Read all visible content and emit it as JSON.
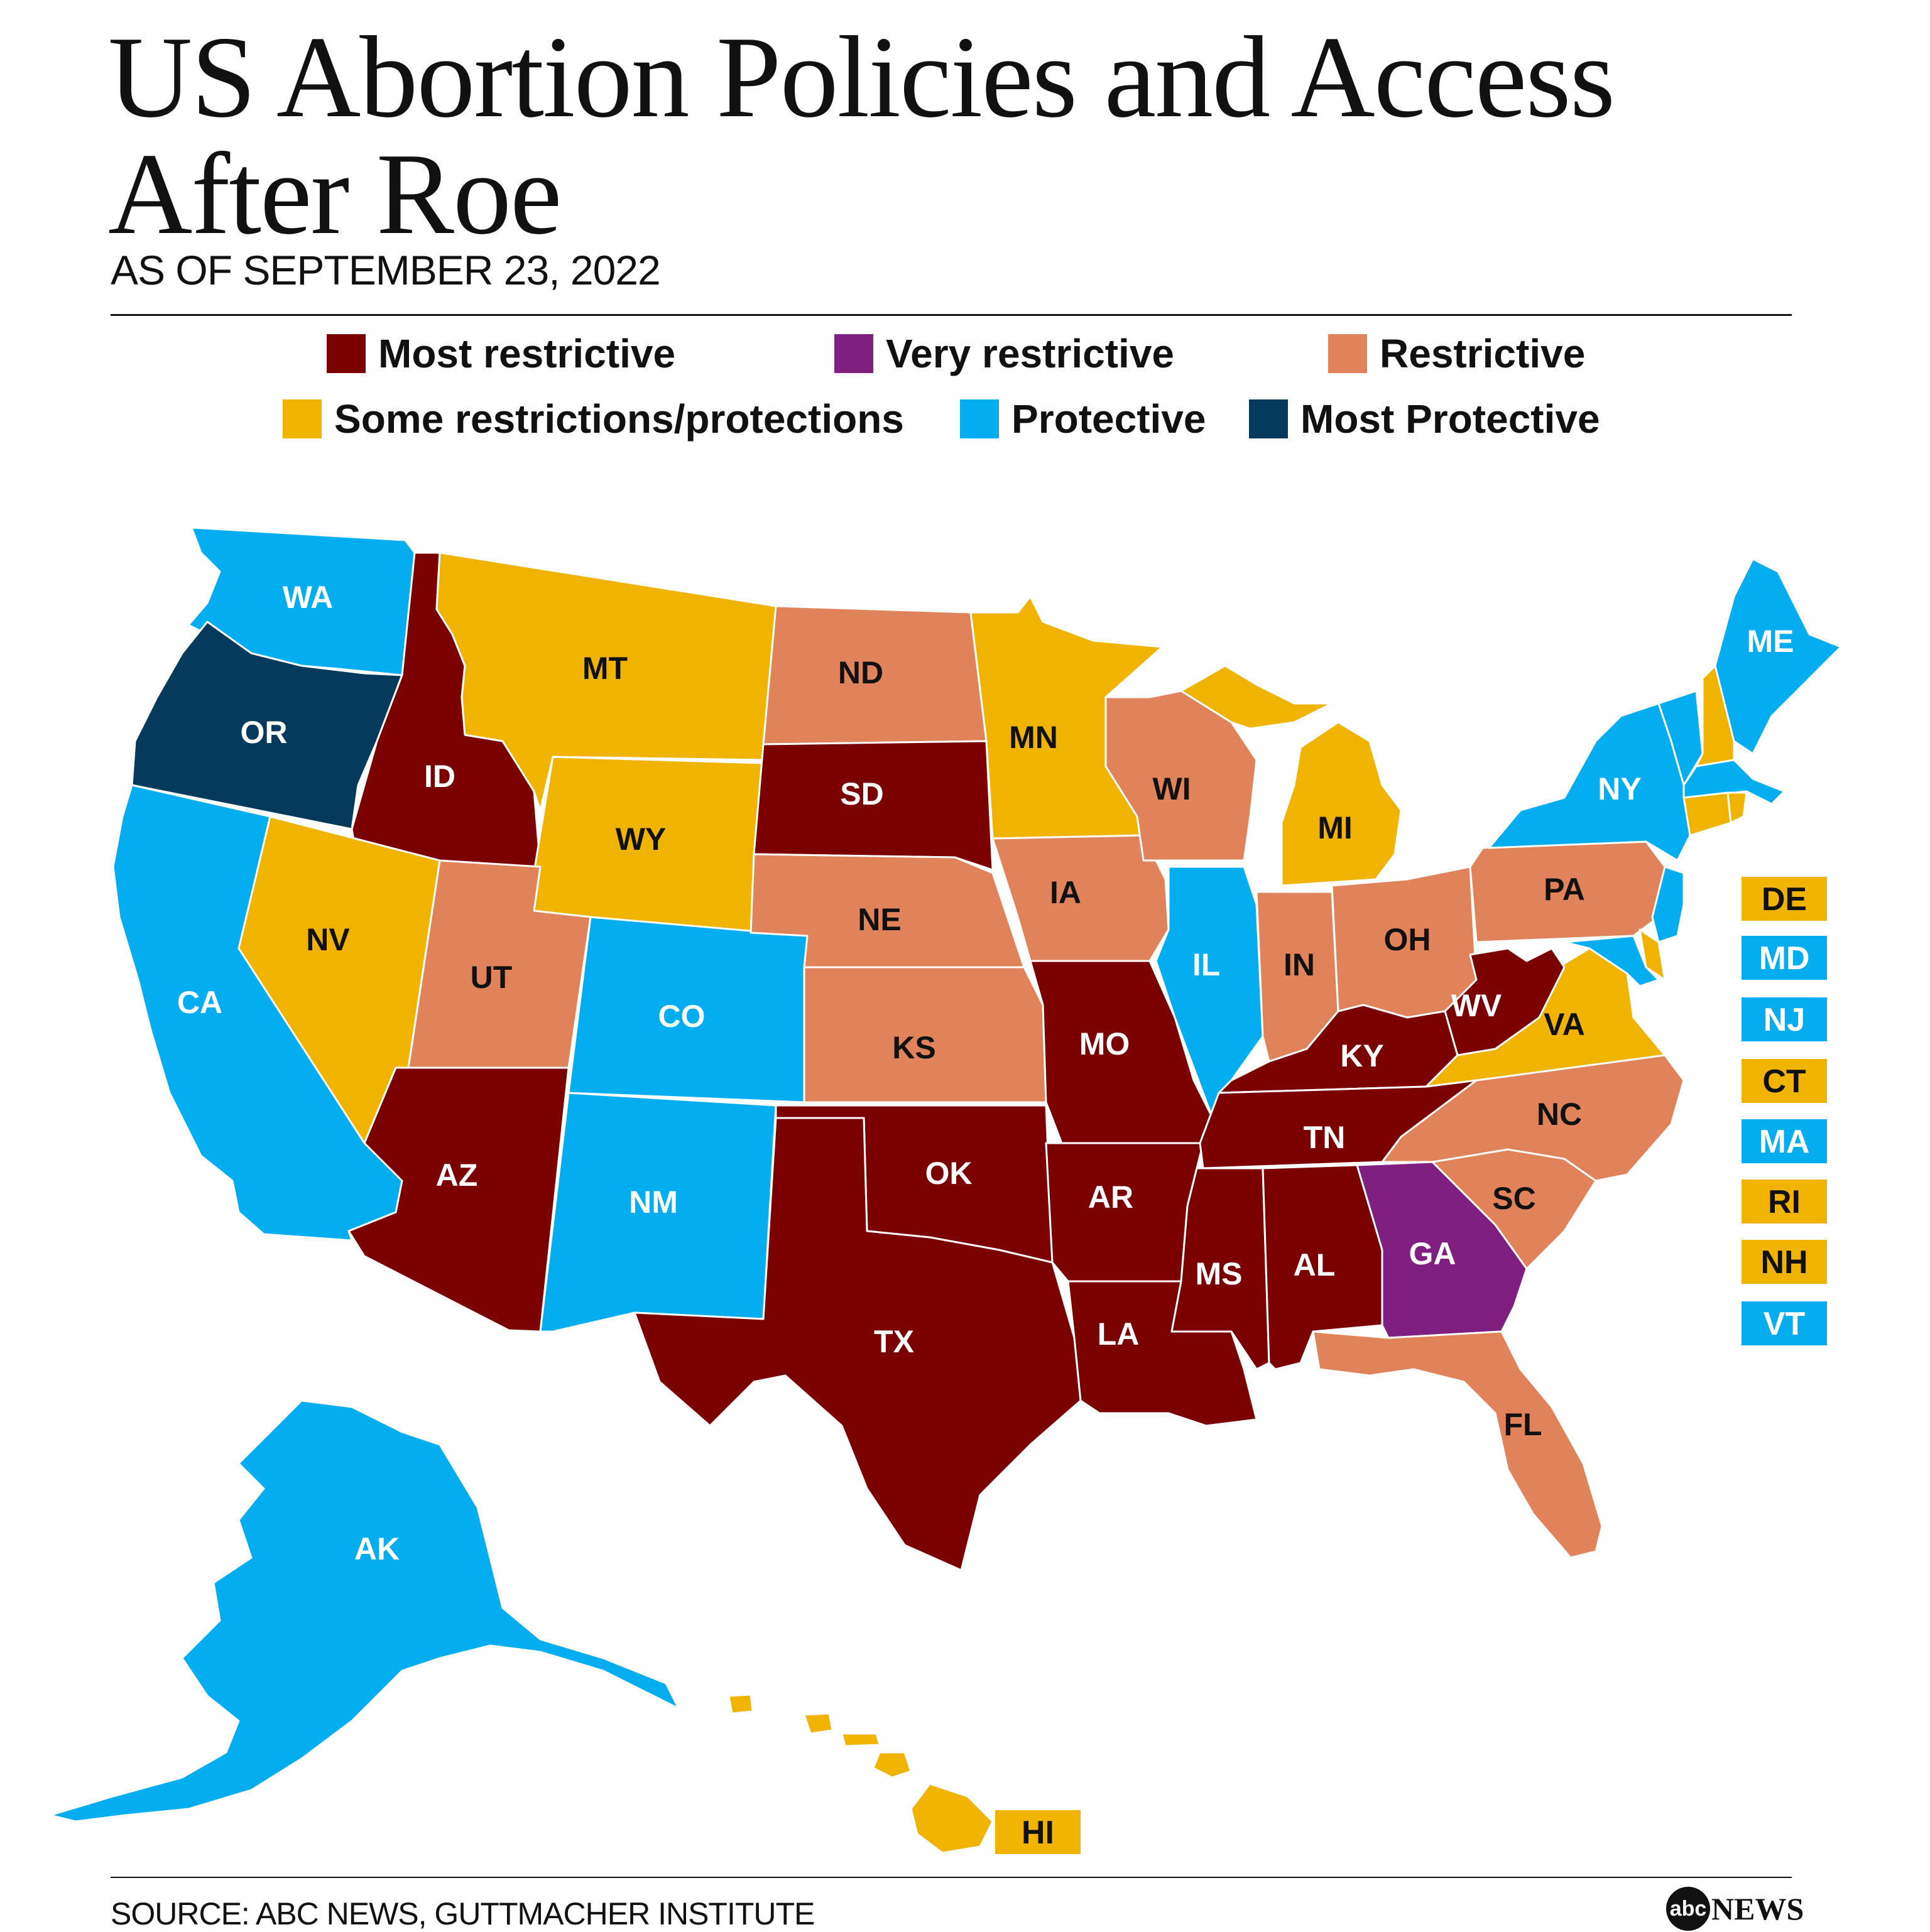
{
  "header": {
    "title": "US Abortion Policies and Access After Roe",
    "subtitle": "AS OF SEPTEMBER 23, 2022"
  },
  "categories": {
    "most_restrictive": {
      "label": "Most restrictive",
      "color": "#7b0000"
    },
    "very_restrictive": {
      "label": "Very restrictive",
      "color": "#7f1f80"
    },
    "restrictive": {
      "label": "Restrictive",
      "color": "#e0835b"
    },
    "some": {
      "label": "Some restrictions/protections",
      "color": "#f0b400"
    },
    "protective": {
      "label": "Protective",
      "color": "#04adef"
    },
    "most_protective": {
      "label": "Most Protective",
      "color": "#053a5c"
    }
  },
  "legend_rows": [
    [
      "most_restrictive",
      "very_restrictive",
      "restrictive"
    ],
    [
      "some",
      "protective",
      "most_protective"
    ]
  ],
  "states": [
    {
      "abbr": "WA",
      "category": "protective"
    },
    {
      "abbr": "OR",
      "category": "most_protective"
    },
    {
      "abbr": "CA",
      "category": "protective"
    },
    {
      "abbr": "ID",
      "category": "most_restrictive"
    },
    {
      "abbr": "NV",
      "category": "some"
    },
    {
      "abbr": "MT",
      "category": "some"
    },
    {
      "abbr": "WY",
      "category": "some"
    },
    {
      "abbr": "UT",
      "category": "restrictive"
    },
    {
      "abbr": "AZ",
      "category": "most_restrictive"
    },
    {
      "abbr": "CO",
      "category": "protective"
    },
    {
      "abbr": "NM",
      "category": "protective"
    },
    {
      "abbr": "ND",
      "category": "restrictive"
    },
    {
      "abbr": "SD",
      "category": "most_restrictive"
    },
    {
      "abbr": "NE",
      "category": "restrictive"
    },
    {
      "abbr": "KS",
      "category": "restrictive"
    },
    {
      "abbr": "OK",
      "category": "most_restrictive"
    },
    {
      "abbr": "TX",
      "category": "most_restrictive"
    },
    {
      "abbr": "MN",
      "category": "some"
    },
    {
      "abbr": "IA",
      "category": "restrictive"
    },
    {
      "abbr": "MO",
      "category": "most_restrictive"
    },
    {
      "abbr": "AR",
      "category": "most_restrictive"
    },
    {
      "abbr": "LA",
      "category": "most_restrictive"
    },
    {
      "abbr": "WI",
      "category": "restrictive"
    },
    {
      "abbr": "IL",
      "category": "protective"
    },
    {
      "abbr": "MI",
      "category": "some"
    },
    {
      "abbr": "IN",
      "category": "restrictive"
    },
    {
      "abbr": "OH",
      "category": "restrictive"
    },
    {
      "abbr": "KY",
      "category": "most_restrictive"
    },
    {
      "abbr": "TN",
      "category": "most_restrictive"
    },
    {
      "abbr": "MS",
      "category": "most_restrictive"
    },
    {
      "abbr": "AL",
      "category": "most_restrictive"
    },
    {
      "abbr": "GA",
      "category": "very_restrictive"
    },
    {
      "abbr": "FL",
      "category": "restrictive"
    },
    {
      "abbr": "SC",
      "category": "restrictive"
    },
    {
      "abbr": "NC",
      "category": "restrictive"
    },
    {
      "abbr": "VA",
      "category": "some"
    },
    {
      "abbr": "WV",
      "category": "most_restrictive"
    },
    {
      "abbr": "PA",
      "category": "restrictive"
    },
    {
      "abbr": "NY",
      "category": "protective"
    },
    {
      "abbr": "ME",
      "category": "protective"
    },
    {
      "abbr": "AK",
      "category": "protective"
    },
    {
      "abbr": "HI",
      "category": "some"
    },
    {
      "abbr": "DE",
      "category": "some"
    },
    {
      "abbr": "MD",
      "category": "protective"
    },
    {
      "abbr": "NJ",
      "category": "protective"
    },
    {
      "abbr": "CT",
      "category": "some"
    },
    {
      "abbr": "MA",
      "category": "protective"
    },
    {
      "abbr": "RI",
      "category": "some"
    },
    {
      "abbr": "NH",
      "category": "some"
    },
    {
      "abbr": "VT",
      "category": "protective"
    }
  ],
  "footer": {
    "source": "SOURCE: ABC NEWS, GUTTMACHER INSTITUTE",
    "logo_mark": "abc",
    "logo_text": "NEWS"
  }
}
